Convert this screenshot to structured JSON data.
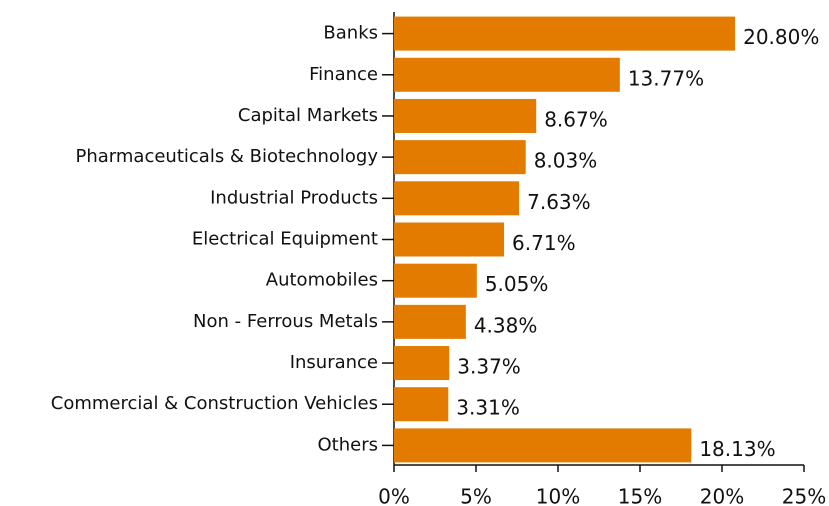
{
  "chart_data": {
    "type": "bar",
    "orientation": "horizontal",
    "categories": [
      "Banks",
      "Finance",
      "Capital Markets",
      "Pharmaceuticals & Biotechnology",
      "Industrial Products",
      "Electrical Equipment",
      "Automobiles",
      "Non - Ferrous Metals",
      "Insurance",
      "Commercial & Construction Vehicles",
      "Others"
    ],
    "values": [
      20.8,
      13.77,
      8.67,
      8.03,
      7.63,
      6.71,
      5.05,
      4.38,
      3.37,
      3.31,
      18.13
    ],
    "value_labels": [
      "20.80%",
      "13.77%",
      "8.67%",
      "8.03%",
      "7.63%",
      "6.71%",
      "5.05%",
      "4.38%",
      "3.37%",
      "3.31%",
      "18.13%"
    ],
    "color": "#e27b00",
    "xlim": [
      0,
      25
    ],
    "xticks": [
      {
        "value": 0,
        "label": "0%"
      },
      {
        "value": 5,
        "label": "5%"
      },
      {
        "value": 10,
        "label": "10%"
      },
      {
        "value": 15,
        "label": "15%"
      },
      {
        "value": 20,
        "label": "20%"
      },
      {
        "value": 25,
        "label": "25%"
      }
    ]
  }
}
